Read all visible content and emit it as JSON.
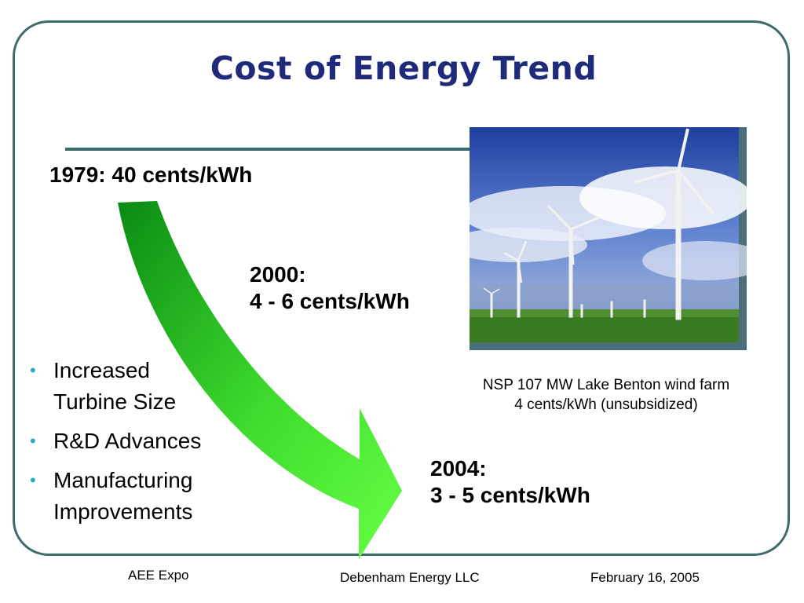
{
  "slide": {
    "title": "Cost of Energy Trend",
    "milestones": [
      {
        "year_label": "1979: 40 cents/kWh"
      },
      {
        "year_label": "2000:",
        "cost_label": "4 - 6 cents/kWh"
      },
      {
        "year_label": "2004:",
        "cost_label": "3 - 5 cents/kWh"
      }
    ],
    "photo": {
      "caption_line1": "NSP 107 MW Lake Benton wind farm",
      "caption_line2": "4 cents/kWh (unsubsidized)"
    },
    "bullets": [
      {
        "line1": "Increased",
        "line2": "Turbine Size"
      },
      {
        "line1": "R&D Advances",
        "line2": ""
      },
      {
        "line1": "Manufacturing",
        "line2": "Improvements"
      }
    ],
    "footer": {
      "left": "AEE Expo",
      "center": "Debenham Energy LLC",
      "right": "February 16, 2005"
    },
    "colors": {
      "title": "#1f2b7a",
      "frame": "#3d6b6b",
      "bullet": "#2ea8c8",
      "arrow_dark": "#0a8a14",
      "arrow_light": "#66ff44"
    }
  }
}
